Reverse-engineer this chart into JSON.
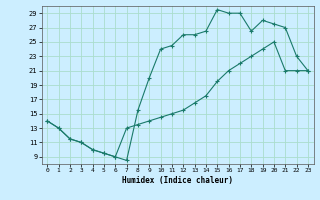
{
  "xlabel": "Humidex (Indice chaleur)",
  "bg_color": "#cceeff",
  "grid_color": "#aaddcc",
  "line_color": "#1a7a6a",
  "xlim": [
    -0.5,
    23.5
  ],
  "ylim": [
    8,
    30
  ],
  "xticks": [
    0,
    1,
    2,
    3,
    4,
    5,
    6,
    7,
    8,
    9,
    10,
    11,
    12,
    13,
    14,
    15,
    16,
    17,
    18,
    19,
    20,
    21,
    22,
    23
  ],
  "yticks": [
    9,
    11,
    13,
    15,
    17,
    19,
    21,
    23,
    25,
    27,
    29
  ],
  "curve1_x": [
    0,
    1,
    2,
    3,
    4,
    5,
    6,
    7,
    8,
    9,
    10,
    11,
    12,
    13,
    14,
    15,
    16,
    17,
    18,
    19,
    20,
    21,
    22,
    23
  ],
  "curve1_y": [
    14,
    13,
    11.5,
    11,
    10,
    9.5,
    9,
    8.5,
    15.5,
    20,
    24,
    24.5,
    26,
    26,
    26.5,
    29.5,
    29,
    29,
    26.5,
    28,
    27.5,
    27,
    23,
    21
  ],
  "curve2_x": [
    0,
    1,
    2,
    3,
    4,
    5,
    6,
    7,
    8,
    9,
    10,
    11,
    12,
    13,
    14,
    15,
    16,
    17,
    18,
    19,
    20,
    21,
    22,
    23
  ],
  "curve2_y": [
    14,
    13,
    11.5,
    11,
    10,
    9.5,
    9,
    13,
    13.5,
    14,
    14.5,
    15,
    15.5,
    16.5,
    17.5,
    19.5,
    21,
    22,
    23,
    24,
    25,
    21,
    21,
    21
  ]
}
